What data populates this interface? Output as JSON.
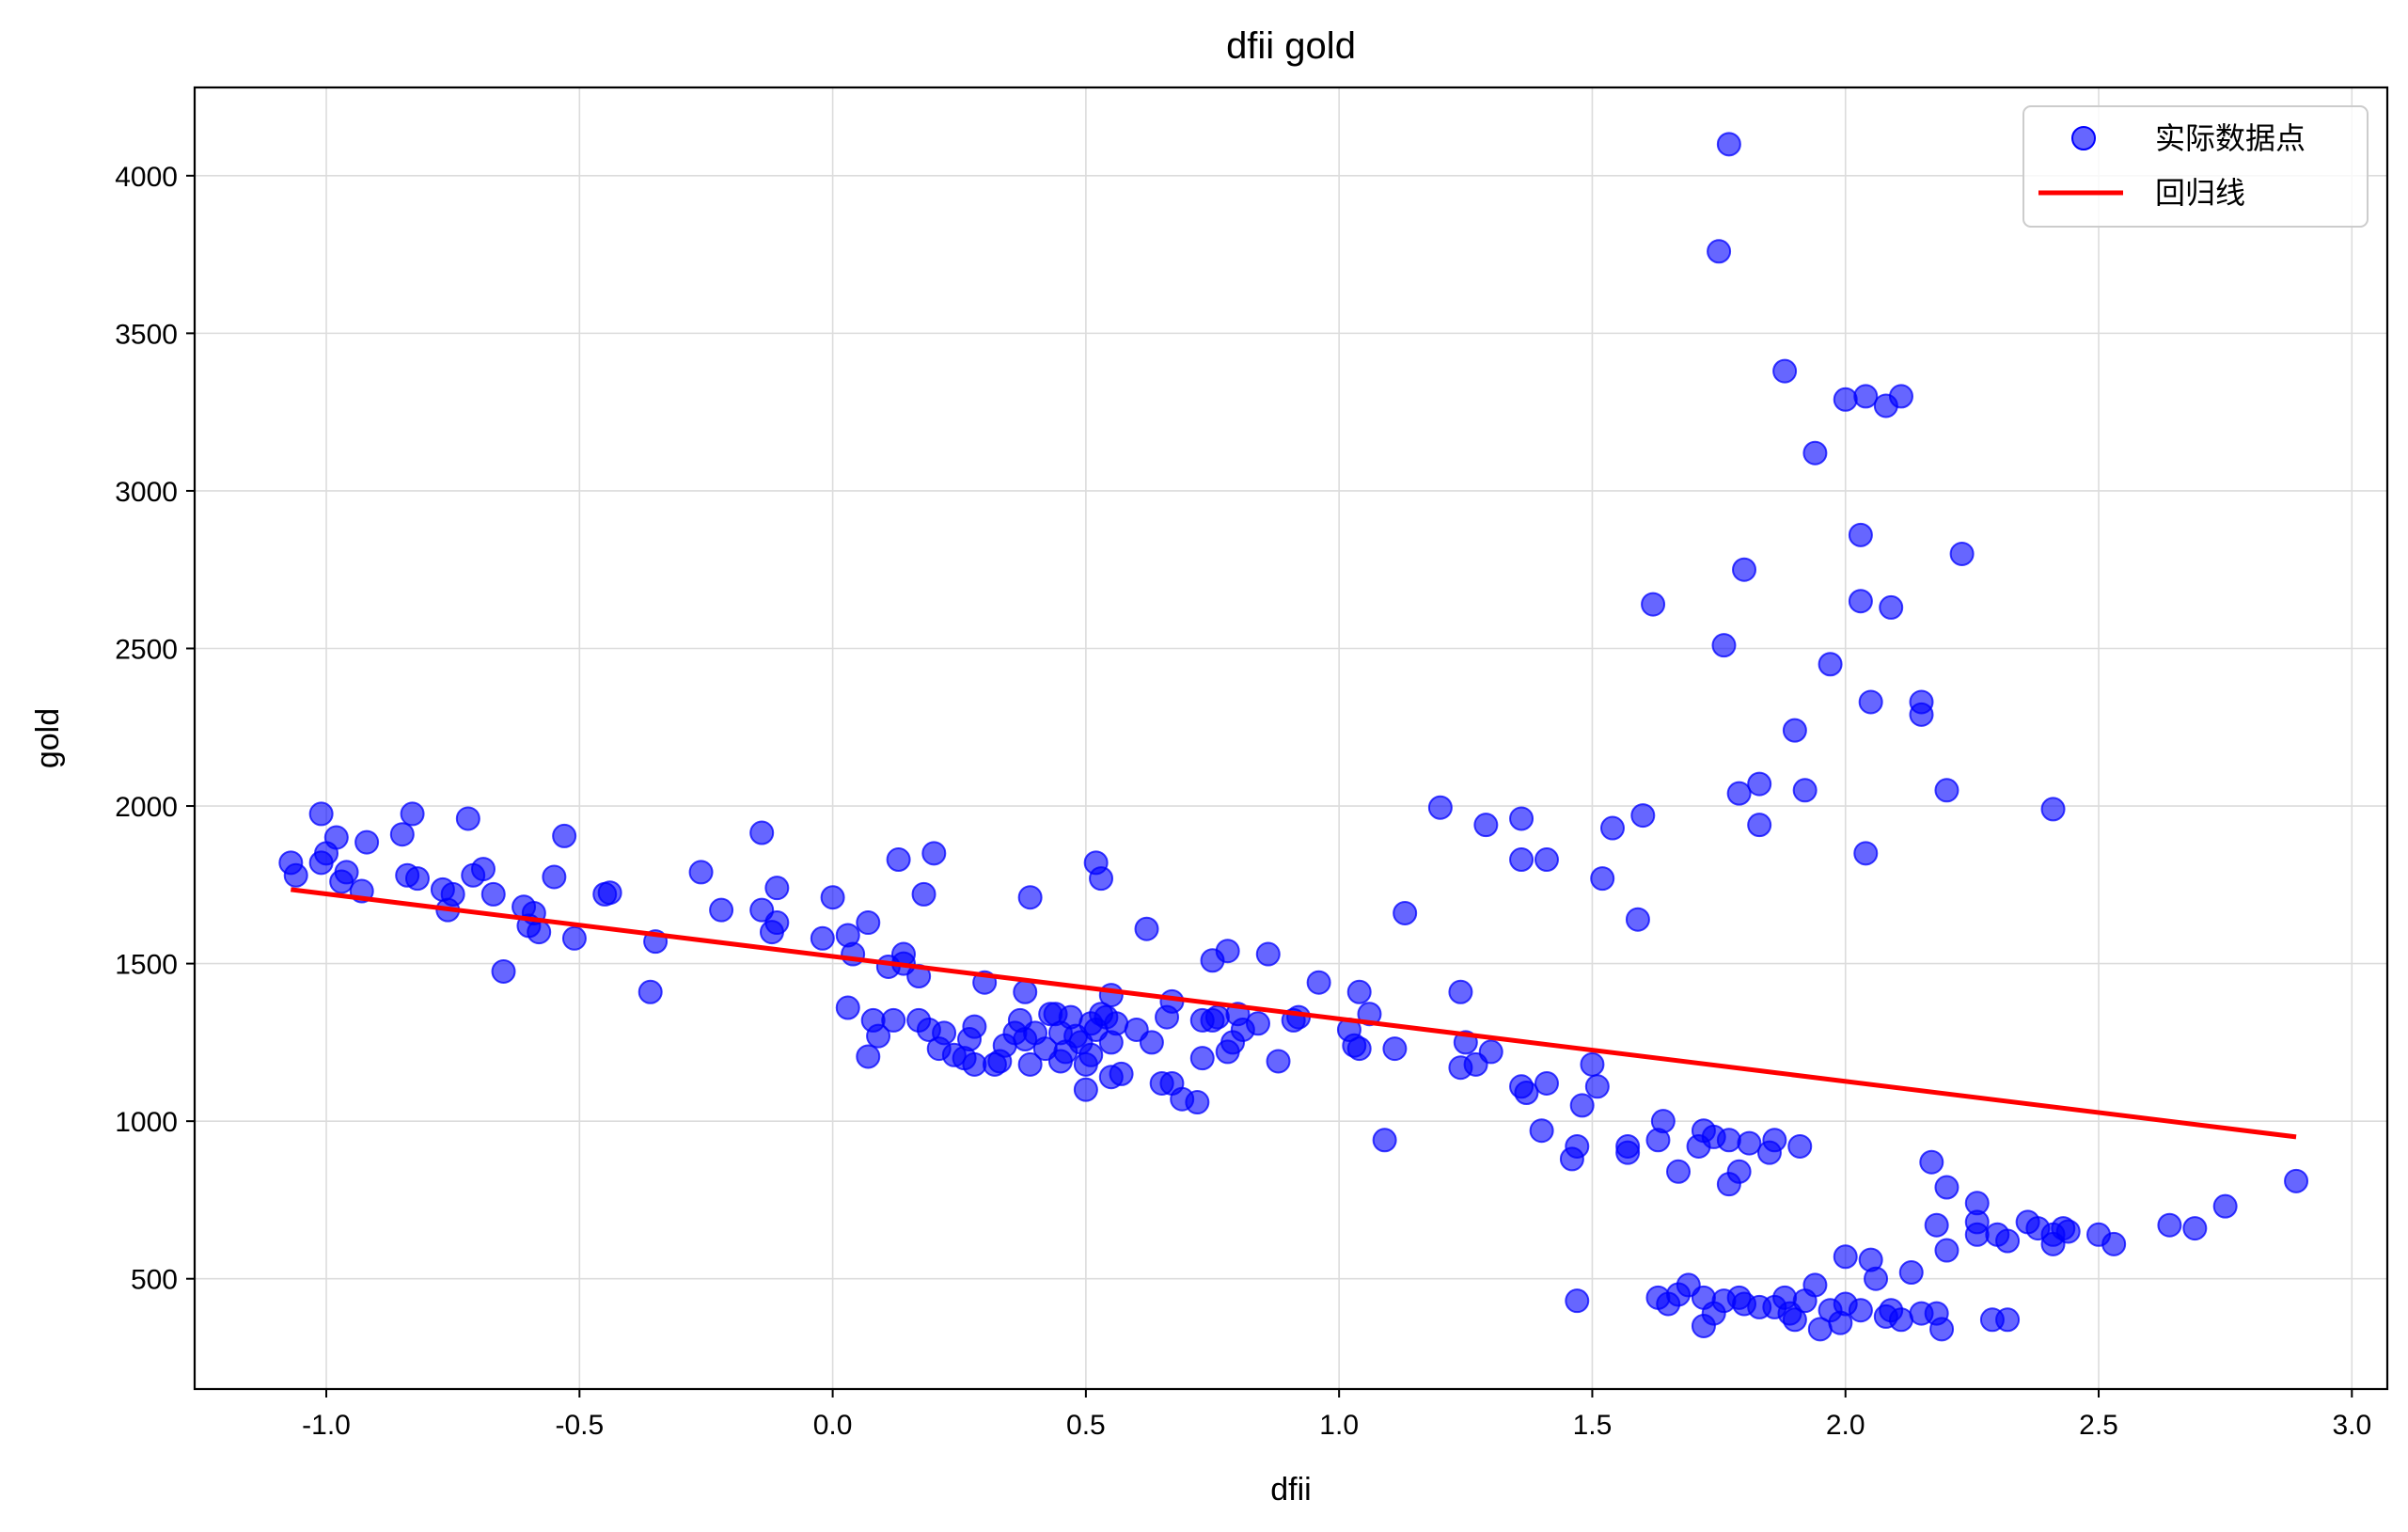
{
  "chart_data": {
    "type": "scatter",
    "title": "dfii gold",
    "xlabel": "dfii",
    "ylabel": "gold",
    "xlim": [
      -1.26,
      3.07
    ],
    "ylim": [
      150,
      4280
    ],
    "xticks": [
      -1.0,
      -0.5,
      0.0,
      0.5,
      1.0,
      1.5,
      2.0,
      2.5,
      3.0
    ],
    "xtick_labels": [
      "-1.0",
      "-0.5",
      "0.0",
      "0.5",
      "1.0",
      "1.5",
      "2.0",
      "2.5",
      "3.0"
    ],
    "yticks": [
      500,
      1000,
      1500,
      2000,
      2500,
      3000,
      3500,
      4000
    ],
    "ytick_labels": [
      "500",
      "1000",
      "1500",
      "2000",
      "2500",
      "3000",
      "3500",
      "4000"
    ],
    "grid": true,
    "legend_position": "top-right",
    "colors": {
      "points": "#0000ff",
      "line": "#ff0000"
    },
    "series": [
      {
        "name": "实际数据点",
        "kind": "scatter",
        "points": [
          [
            -1.07,
            1820
          ],
          [
            -1.06,
            1780
          ],
          [
            -1.01,
            1975
          ],
          [
            -1.01,
            1820
          ],
          [
            -1.0,
            1850
          ],
          [
            -0.98,
            1900
          ],
          [
            -0.97,
            1760
          ],
          [
            -0.96,
            1790
          ],
          [
            -0.93,
            1730
          ],
          [
            -0.92,
            1885
          ],
          [
            -0.85,
            1910
          ],
          [
            -0.84,
            1780
          ],
          [
            -0.83,
            1975
          ],
          [
            -0.82,
            1770
          ],
          [
            -0.77,
            1735
          ],
          [
            -0.76,
            1670
          ],
          [
            -0.75,
            1720
          ],
          [
            -0.72,
            1960
          ],
          [
            -0.71,
            1780
          ],
          [
            -0.69,
            1800
          ],
          [
            -0.67,
            1720
          ],
          [
            -0.65,
            1475
          ],
          [
            -0.61,
            1680
          ],
          [
            -0.6,
            1620
          ],
          [
            -0.59,
            1660
          ],
          [
            -0.58,
            1600
          ],
          [
            -0.55,
            1775
          ],
          [
            -0.53,
            1905
          ],
          [
            -0.51,
            1580
          ],
          [
            -0.45,
            1720
          ],
          [
            -0.44,
            1725
          ],
          [
            -0.36,
            1410
          ],
          [
            -0.35,
            1570
          ],
          [
            -0.26,
            1790
          ],
          [
            -0.22,
            1670
          ],
          [
            -0.14,
            1670
          ],
          [
            -0.14,
            1915
          ],
          [
            -0.12,
            1600
          ],
          [
            -0.11,
            1740
          ],
          [
            -0.11,
            1630
          ],
          [
            -0.02,
            1580
          ],
          [
            0.0,
            1710
          ],
          [
            0.03,
            1590
          ],
          [
            0.03,
            1360
          ],
          [
            0.04,
            1530
          ],
          [
            0.07,
            1630
          ],
          [
            0.07,
            1205
          ],
          [
            0.08,
            1320
          ],
          [
            0.09,
            1270
          ],
          [
            0.11,
            1490
          ],
          [
            0.12,
            1320
          ],
          [
            0.13,
            1830
          ],
          [
            0.14,
            1530
          ],
          [
            0.14,
            1500
          ],
          [
            0.17,
            1460
          ],
          [
            0.17,
            1320
          ],
          [
            0.18,
            1720
          ],
          [
            0.19,
            1290
          ],
          [
            0.2,
            1850
          ],
          [
            0.21,
            1230
          ],
          [
            0.22,
            1280
          ],
          [
            0.24,
            1210
          ],
          [
            0.26,
            1200
          ],
          [
            0.27,
            1260
          ],
          [
            0.28,
            1300
          ],
          [
            0.28,
            1180
          ],
          [
            0.3,
            1440
          ],
          [
            0.32,
            1180
          ],
          [
            0.33,
            1190
          ],
          [
            0.34,
            1240
          ],
          [
            0.36,
            1280
          ],
          [
            0.37,
            1320
          ],
          [
            0.38,
            1410
          ],
          [
            0.38,
            1260
          ],
          [
            0.39,
            1180
          ],
          [
            0.39,
            1710
          ],
          [
            0.4,
            1280
          ],
          [
            0.42,
            1230
          ],
          [
            0.43,
            1340
          ],
          [
            0.44,
            1340
          ],
          [
            0.45,
            1280
          ],
          [
            0.45,
            1190
          ],
          [
            0.46,
            1220
          ],
          [
            0.47,
            1330
          ],
          [
            0.48,
            1270
          ],
          [
            0.49,
            1250
          ],
          [
            0.5,
            1180
          ],
          [
            0.5,
            1100
          ],
          [
            0.51,
            1310
          ],
          [
            0.51,
            1210
          ],
          [
            0.52,
            1290
          ],
          [
            0.52,
            1820
          ],
          [
            0.53,
            1770
          ],
          [
            0.53,
            1340
          ],
          [
            0.54,
            1330
          ],
          [
            0.55,
            1400
          ],
          [
            0.55,
            1250
          ],
          [
            0.55,
            1140
          ],
          [
            0.56,
            1310
          ],
          [
            0.57,
            1150
          ],
          [
            0.6,
            1290
          ],
          [
            0.62,
            1610
          ],
          [
            0.63,
            1250
          ],
          [
            0.65,
            1120
          ],
          [
            0.66,
            1330
          ],
          [
            0.67,
            1380
          ],
          [
            0.67,
            1120
          ],
          [
            0.69,
            1070
          ],
          [
            0.72,
            1060
          ],
          [
            0.73,
            1200
          ],
          [
            0.73,
            1320
          ],
          [
            0.75,
            1510
          ],
          [
            0.75,
            1320
          ],
          [
            0.76,
            1330
          ],
          [
            0.78,
            1540
          ],
          [
            0.78,
            1220
          ],
          [
            0.79,
            1250
          ],
          [
            0.8,
            1340
          ],
          [
            0.81,
            1290
          ],
          [
            0.84,
            1310
          ],
          [
            0.86,
            1530
          ],
          [
            0.88,
            1190
          ],
          [
            0.91,
            1320
          ],
          [
            0.92,
            1330
          ],
          [
            0.96,
            1440
          ],
          [
            1.02,
            1290
          ],
          [
            1.03,
            1240
          ],
          [
            1.04,
            1410
          ],
          [
            1.04,
            1230
          ],
          [
            1.06,
            1340
          ],
          [
            1.09,
            940
          ],
          [
            1.11,
            1230
          ],
          [
            1.13,
            1660
          ],
          [
            1.2,
            1995
          ],
          [
            1.24,
            1410
          ],
          [
            1.24,
            1170
          ],
          [
            1.25,
            1250
          ],
          [
            1.27,
            1180
          ],
          [
            1.29,
            1940
          ],
          [
            1.3,
            1220
          ],
          [
            1.36,
            1960
          ],
          [
            1.36,
            1830
          ],
          [
            1.36,
            1110
          ],
          [
            1.37,
            1090
          ],
          [
            1.4,
            970
          ],
          [
            1.41,
            1830
          ],
          [
            1.41,
            1120
          ],
          [
            1.46,
            880
          ],
          [
            1.47,
            920
          ],
          [
            1.48,
            1050
          ],
          [
            1.5,
            1180
          ],
          [
            1.51,
            1110
          ],
          [
            1.52,
            1770
          ],
          [
            1.54,
            1930
          ],
          [
            1.57,
            920
          ],
          [
            1.57,
            900
          ],
          [
            1.59,
            1640
          ],
          [
            1.6,
            1970
          ],
          [
            1.62,
            2640
          ],
          [
            1.63,
            940
          ],
          [
            1.64,
            1000
          ],
          [
            1.67,
            840
          ],
          [
            1.71,
            920
          ],
          [
            1.72,
            970
          ],
          [
            1.74,
            950
          ],
          [
            1.75,
            3760
          ],
          [
            1.76,
            2510
          ],
          [
            1.77,
            4100
          ],
          [
            1.77,
            940
          ],
          [
            1.77,
            800
          ],
          [
            1.79,
            2040
          ],
          [
            1.79,
            840
          ],
          [
            1.8,
            2750
          ],
          [
            1.81,
            930
          ],
          [
            1.83,
            1940
          ],
          [
            1.83,
            2070
          ],
          [
            1.85,
            900
          ],
          [
            1.86,
            940
          ],
          [
            1.88,
            3380
          ],
          [
            1.9,
            2240
          ],
          [
            1.91,
            920
          ],
          [
            1.92,
            2050
          ],
          [
            1.94,
            3120
          ],
          [
            1.97,
            2450
          ],
          [
            2.0,
            3290
          ],
          [
            2.03,
            2860
          ],
          [
            2.03,
            2650
          ],
          [
            2.04,
            1850
          ],
          [
            2.04,
            3300
          ],
          [
            2.05,
            2330
          ],
          [
            2.08,
            3270
          ],
          [
            2.09,
            2630
          ],
          [
            2.11,
            3300
          ],
          [
            2.15,
            2290
          ],
          [
            2.15,
            2330
          ],
          [
            2.2,
            2050
          ],
          [
            2.23,
            2800
          ],
          [
            2.17,
            870
          ],
          [
            2.2,
            790
          ],
          [
            2.18,
            670
          ],
          [
            2.2,
            590
          ],
          [
            2.26,
            740
          ],
          [
            2.26,
            680
          ],
          [
            2.26,
            640
          ],
          [
            2.3,
            640
          ],
          [
            2.32,
            620
          ],
          [
            2.36,
            680
          ],
          [
            2.38,
            660
          ],
          [
            2.41,
            640
          ],
          [
            2.41,
            610
          ],
          [
            2.43,
            660
          ],
          [
            2.44,
            650
          ],
          [
            2.5,
            640
          ],
          [
            2.53,
            610
          ],
          [
            2.64,
            670
          ],
          [
            2.69,
            660
          ],
          [
            2.75,
            730
          ],
          [
            2.89,
            810
          ],
          [
            2.41,
            1990
          ],
          [
            1.47,
            430
          ],
          [
            1.63,
            440
          ],
          [
            1.65,
            420
          ],
          [
            1.67,
            450
          ],
          [
            1.69,
            480
          ],
          [
            1.72,
            440
          ],
          [
            1.72,
            350
          ],
          [
            1.74,
            390
          ],
          [
            1.76,
            430
          ],
          [
            1.79,
            440
          ],
          [
            1.8,
            420
          ],
          [
            1.83,
            410
          ],
          [
            1.86,
            410
          ],
          [
            1.88,
            440
          ],
          [
            1.89,
            390
          ],
          [
            1.9,
            370
          ],
          [
            1.92,
            430
          ],
          [
            1.94,
            480
          ],
          [
            1.95,
            340
          ],
          [
            1.97,
            400
          ],
          [
            1.99,
            360
          ],
          [
            2.0,
            420
          ],
          [
            2.0,
            570
          ],
          [
            2.03,
            400
          ],
          [
            2.05,
            560
          ],
          [
            2.06,
            500
          ],
          [
            2.08,
            380
          ],
          [
            2.09,
            400
          ],
          [
            2.11,
            370
          ],
          [
            2.13,
            520
          ],
          [
            2.15,
            390
          ],
          [
            2.18,
            390
          ],
          [
            2.19,
            340
          ],
          [
            2.29,
            370
          ],
          [
            2.32,
            370
          ]
        ]
      },
      {
        "name": "回归线",
        "kind": "line",
        "points": [
          [
            -1.07,
            1735
          ],
          [
            2.89,
            950
          ]
        ]
      }
    ]
  }
}
